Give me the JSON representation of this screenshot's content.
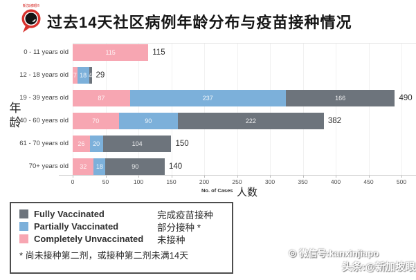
{
  "brand": {
    "logo_text": "新加坡眼®",
    "accent_color": "#d8322e"
  },
  "title": "过去14天社区病例年龄分布与疫苗接种情况",
  "chart_data": {
    "type": "bar",
    "orientation": "horizontal",
    "stacked": true,
    "title": "过去14天社区病例年龄分布与疫苗接种情况",
    "categories": [
      "0 - 11 years old",
      "12 - 18 years old",
      "19 - 39 years old",
      "40 - 60 years old",
      "61 - 70 years old",
      "70+ years old"
    ],
    "series": [
      {
        "name": "Completely Unvaccinated",
        "color": "#f7a6b2",
        "values": [
          115,
          7,
          87,
          70,
          26,
          32
        ]
      },
      {
        "name": "Partially Vaccinated",
        "color": "#7cb0da",
        "values": [
          0,
          18,
          237,
          90,
          20,
          18
        ]
      },
      {
        "name": "Fully Vaccinated",
        "color": "#6d747c",
        "values": [
          0,
          4,
          166,
          222,
          104,
          90
        ]
      }
    ],
    "totals": [
      115,
      29,
      490,
      382,
      150,
      140
    ],
    "x_ticks": [
      0,
      50,
      100,
      150,
      200,
      250,
      300,
      350,
      400,
      450,
      500
    ],
    "xlim": [
      0,
      513
    ],
    "grid": true,
    "xlabel_en": "No. of Cases",
    "xlabel_zh": "人数",
    "ylabel": "年龄",
    "legend_position": "bottom-left"
  },
  "legend": {
    "items": [
      {
        "label_en": "Fully Vaccinated",
        "label_zh": "完成疫苗接种",
        "color": "#6d747c"
      },
      {
        "label_en": "Partially Vaccinated",
        "label_zh": "部分接种 *",
        "color": "#7cb0da"
      },
      {
        "label_en": "Completely Unvaccinated",
        "label_zh": "未接种",
        "color": "#f7a6b2"
      }
    ],
    "footnote": "* 尚未接种第二剂，或接种第二剂未满14天"
  },
  "watermark": {
    "icon": "camera-circle-icon",
    "line1": "微信号:kanxinjiapo",
    "line2": "头条:@新加坡眼"
  }
}
